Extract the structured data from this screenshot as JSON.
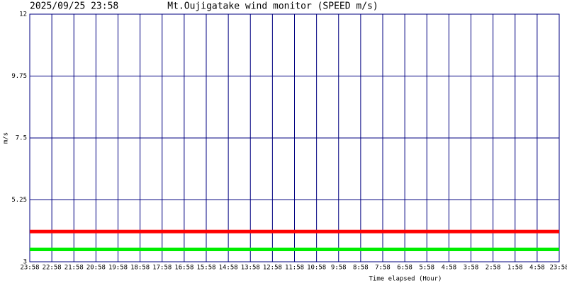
{
  "chart_data": {
    "type": "line",
    "title": "Mt.Oujigatake wind monitor (SPEED m/s)",
    "subtitle": "2025/09/25 23:58",
    "y_label": "m/s",
    "x_label": "Time elapsed (Hour)",
    "categories": [
      "23:58",
      "22:58",
      "21:58",
      "20:58",
      "19:58",
      "18:58",
      "17:58",
      "16:58",
      "15:58",
      "14:58",
      "13:58",
      "12:58",
      "11:58",
      "10:58",
      "9:58",
      "8:58",
      "7:58",
      "6:58",
      "5:58",
      "4:58",
      "3:58",
      "2:58",
      "1:58",
      "4:58",
      "23:58"
    ],
    "series": [
      {
        "color": "#ff0000",
        "values": [
          4.1,
          4.1,
          4.1,
          4.1,
          4.1,
          4.1,
          4.1,
          4.1,
          4.1,
          4.1,
          4.1,
          4.1,
          4.1,
          4.1,
          4.1,
          4.1,
          4.1,
          4.1,
          4.1,
          4.1,
          4.1,
          4.1,
          4.1,
          4.1,
          4.1
        ]
      },
      {
        "color": "#00ee00",
        "values": [
          3.45,
          3.45,
          3.45,
          3.45,
          3.45,
          3.45,
          3.45,
          3.45,
          3.45,
          3.45,
          3.45,
          3.45,
          3.45,
          3.45,
          3.45,
          3.45,
          3.45,
          3.45,
          3.45,
          3.45,
          3.45,
          3.45,
          3.45,
          3.45,
          3.45
        ]
      }
    ],
    "ylim": [
      3,
      12
    ],
    "yticks": [
      3,
      5.25,
      7.5,
      9.75,
      12
    ],
    "grid": true,
    "grid_color": "#000080"
  }
}
